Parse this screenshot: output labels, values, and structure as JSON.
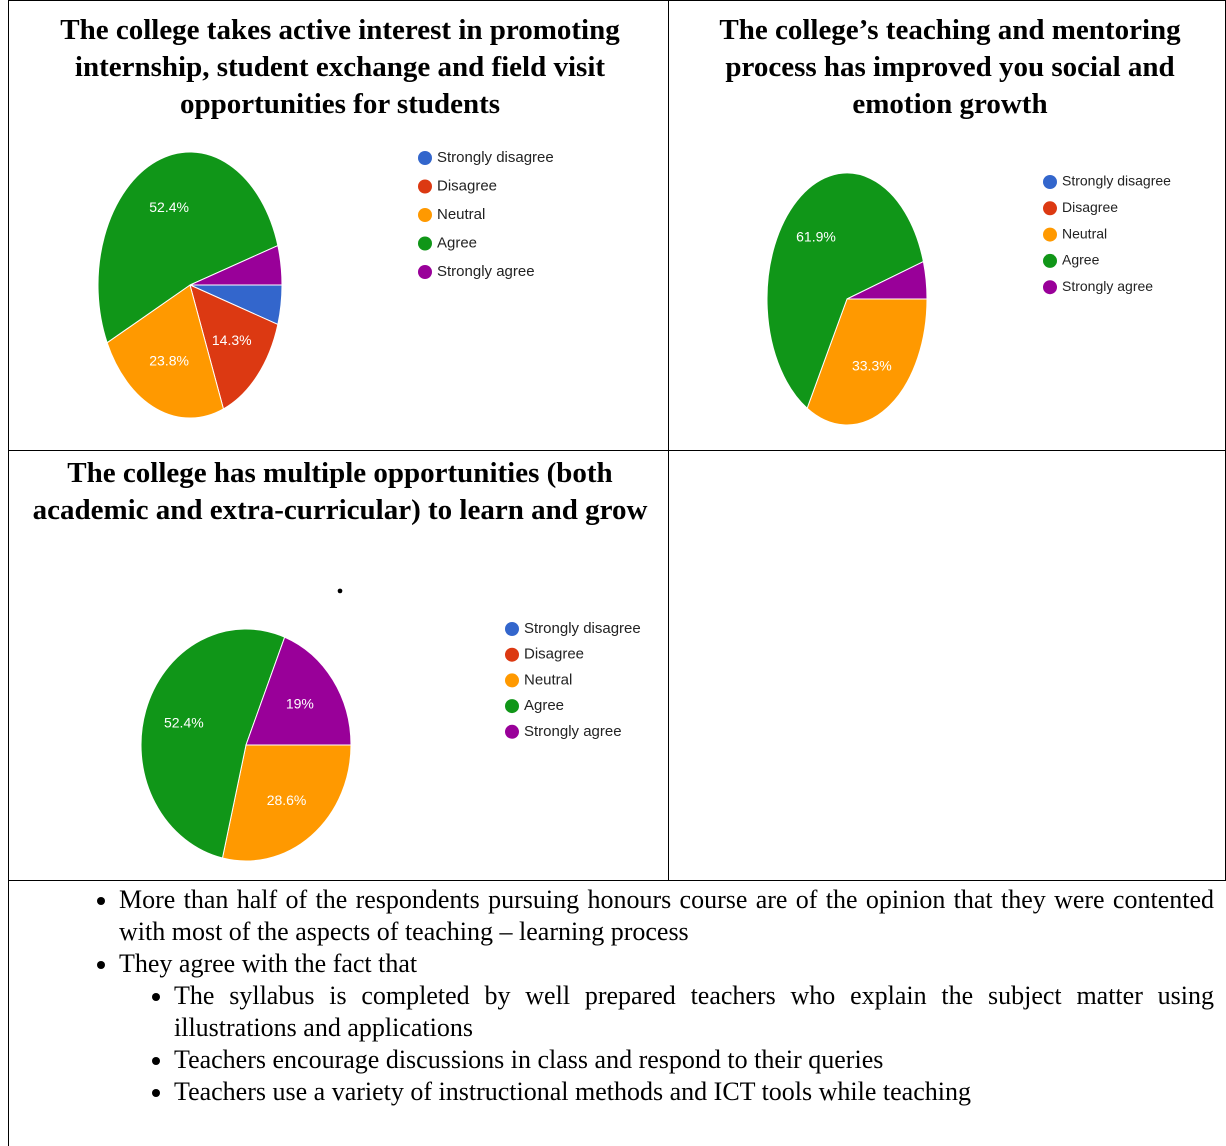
{
  "chart_data": [
    {
      "type": "pie",
      "title": "The college takes active interest in promoting internship, student exchange and field visit opportunities for students",
      "categories": [
        "Strongly disagree",
        "Disagree",
        "Neutral",
        "Agree",
        "Strongly agree"
      ],
      "values": [
        4.8,
        14.3,
        23.8,
        52.4,
        4.8
      ],
      "value_labels": [
        null,
        "14.3%",
        "23.8%",
        "52.4%",
        null
      ],
      "colors": [
        "#3366cc",
        "#dc3912",
        "#ff9900",
        "#109618",
        "#990099"
      ]
    },
    {
      "type": "pie",
      "title": "The college’s teaching and mentoring process has improved you social and emotion growth",
      "categories": [
        "Strongly disagree",
        "Disagree",
        "Neutral",
        "Agree",
        "Strongly agree"
      ],
      "values": [
        0,
        0,
        33.3,
        61.9,
        4.8
      ],
      "value_labels": [
        null,
        null,
        "33.3%",
        "61.9%",
        null
      ],
      "colors": [
        "#3366cc",
        "#dc3912",
        "#ff9900",
        "#109618",
        "#990099"
      ]
    },
    {
      "type": "pie",
      "title": "The college has multiple opportunities (both academic and extra-curricular) to learn and grow",
      "subtitle": ".",
      "categories": [
        "Strongly disagree",
        "Disagree",
        "Neutral",
        "Agree",
        "Strongly agree"
      ],
      "values": [
        0,
        0,
        28.6,
        52.4,
        19
      ],
      "value_labels": [
        null,
        null,
        "28.6%",
        "52.4%",
        "19%"
      ],
      "colors": [
        "#3366cc",
        "#dc3912",
        "#ff9900",
        "#109618",
        "#990099"
      ]
    }
  ],
  "bullets": [
    {
      "text": "More than half of the respondents pursuing honours course are of the opinion that they were contented with most of the aspects of teaching – learning process"
    },
    {
      "text": "They agree with the fact that",
      "items": [
        "The syllabus is completed by well prepared teachers who explain the subject matter using illustrations and applications",
        "Teachers encourage discussions in class and respond to their queries",
        "Teachers use a variety of instructional methods and ICT tools while teaching"
      ]
    }
  ]
}
